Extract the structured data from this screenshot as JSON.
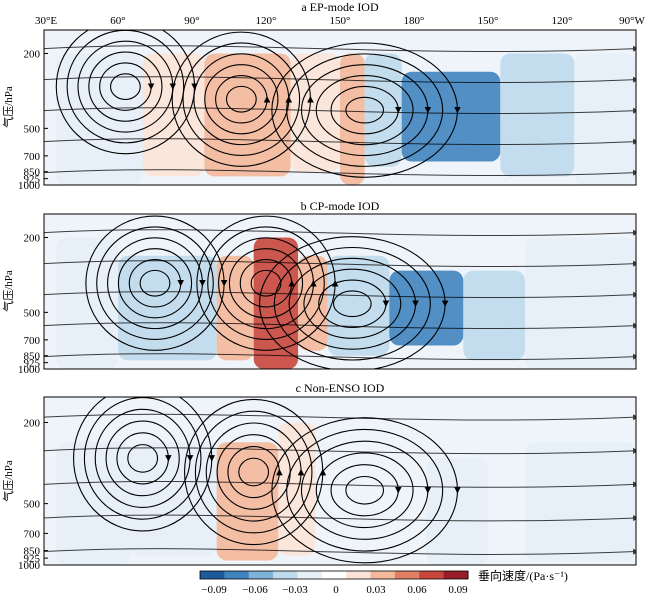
{
  "figure": {
    "x_ticks": [
      "30°E",
      "60°",
      "90°",
      "120°",
      "150°",
      "180°",
      "150°",
      "120°",
      "90°W"
    ],
    "y_label": "气压/hPa",
    "colorbar": {
      "label": "垂向速度/(Pa·s⁻¹)",
      "ticks": [
        "−0.09",
        "−0.06",
        "−0.03",
        "0",
        "0.03",
        "0.06",
        "0.09"
      ],
      "colors": [
        "#1f5b9b",
        "#3f84bf",
        "#7fb2d9",
        "#bfdaec",
        "#e6f0f7",
        "#ffffff",
        "#fbe4d7",
        "#f4b89a",
        "#e07f63",
        "#c8463b",
        "#981d2a"
      ]
    }
  },
  "chart_data": [
    {
      "type": "heatmap",
      "title": "a  EP-mode IOD",
      "xlabel": "",
      "ylabel": "气压/hPa",
      "x_range_deg_east": [
        30,
        270
      ],
      "y_levels_hPa": [
        200,
        500,
        700,
        850,
        925,
        1000
      ],
      "y_scale": "log",
      "value_range": [
        -0.09,
        0.09
      ],
      "overlay": "streamlines",
      "regions": [
        {
          "lon": [
            35,
            70
          ],
          "p": [
            200,
            1000
          ],
          "omega": -0.015
        },
        {
          "lon": [
            70,
            95
          ],
          "p": [
            200,
            900
          ],
          "omega": 0.02
        },
        {
          "lon": [
            95,
            130
          ],
          "p": [
            200,
            900
          ],
          "omega": 0.035
        },
        {
          "lon": [
            130,
            150
          ],
          "p": [
            200,
            850
          ],
          "omega": 0.02
        },
        {
          "lon": [
            150,
            160
          ],
          "p": [
            200,
            1000
          ],
          "omega": 0.03
        },
        {
          "lon": [
            160,
            175
          ],
          "p": [
            200,
            800
          ],
          "omega": -0.03
        },
        {
          "lon": [
            175,
            215
          ],
          "p": [
            250,
            750
          ],
          "omega": -0.06
        },
        {
          "lon": [
            215,
            245
          ],
          "p": [
            200,
            900
          ],
          "omega": -0.025
        },
        {
          "lon": [
            245,
            270
          ],
          "p": [
            200,
            1000
          ],
          "omega": -0.01
        }
      ],
      "circulation_cells": [
        {
          "lon": 63,
          "p": 300,
          "direction": "clockwise"
        },
        {
          "lon": 110,
          "p": 350,
          "direction": "counterclockwise"
        },
        {
          "lon": 160,
          "p": 400,
          "direction": "clockwise"
        }
      ]
    },
    {
      "type": "heatmap",
      "title": "b  CP-mode IOD",
      "xlabel": "",
      "ylabel": "气压/hPa",
      "x_range_deg_east": [
        30,
        270
      ],
      "y_levels_hPa": [
        200,
        500,
        700,
        850,
        925,
        1000
      ],
      "y_scale": "log",
      "value_range": [
        -0.09,
        0.09
      ],
      "overlay": "streamlines",
      "regions": [
        {
          "lon": [
            35,
            60
          ],
          "p": [
            200,
            1000
          ],
          "omega": -0.01
        },
        {
          "lon": [
            60,
            100
          ],
          "p": [
            250,
            900
          ],
          "omega": -0.025
        },
        {
          "lon": [
            100,
            115
          ],
          "p": [
            250,
            900
          ],
          "omega": 0.035
        },
        {
          "lon": [
            115,
            133
          ],
          "p": [
            200,
            1000
          ],
          "omega": 0.07
        },
        {
          "lon": [
            133,
            145
          ],
          "p": [
            250,
            800
          ],
          "omega": 0.03
        },
        {
          "lon": [
            145,
            170
          ],
          "p": [
            250,
            850
          ],
          "omega": -0.04
        },
        {
          "lon": [
            170,
            200
          ],
          "p": [
            300,
            750
          ],
          "omega": -0.065
        },
        {
          "lon": [
            200,
            225
          ],
          "p": [
            300,
            900
          ],
          "omega": -0.03
        },
        {
          "lon": [
            225,
            270
          ],
          "p": [
            200,
            1000
          ],
          "omega": -0.01
        }
      ],
      "circulation_cells": [
        {
          "lon": 75,
          "p": 350,
          "direction": "clockwise"
        },
        {
          "lon": 120,
          "p": 350,
          "direction": "counterclockwise"
        },
        {
          "lon": 155,
          "p": 450,
          "direction": "clockwise"
        }
      ]
    },
    {
      "type": "heatmap",
      "title": "c  Non-ENSO IOD",
      "xlabel": "",
      "ylabel": "气压/hPa",
      "x_range_deg_east": [
        30,
        270
      ],
      "y_levels_hPa": [
        200,
        500,
        700,
        850,
        925,
        1000
      ],
      "y_scale": "log",
      "value_range": [
        -0.09,
        0.09
      ],
      "overlay": "streamlines",
      "regions": [
        {
          "lon": [
            35,
            65
          ],
          "p": [
            250,
            1000
          ],
          "omega": -0.015
        },
        {
          "lon": [
            65,
            100
          ],
          "p": [
            250,
            900
          ],
          "omega": -0.02
        },
        {
          "lon": [
            100,
            125
          ],
          "p": [
            250,
            950
          ],
          "omega": 0.025
        },
        {
          "lon": [
            125,
            140
          ],
          "p": [
            200,
            900
          ],
          "omega": 0.015
        },
        {
          "lon": [
            185,
            210
          ],
          "p": [
            300,
            1000
          ],
          "omega": -0.015
        },
        {
          "lon": [
            225,
            270
          ],
          "p": [
            250,
            950
          ],
          "omega": -0.01
        }
      ],
      "circulation_cells": [
        {
          "lon": 70,
          "p": 300,
          "direction": "clockwise"
        },
        {
          "lon": 115,
          "p": 350,
          "direction": "counterclockwise"
        },
        {
          "lon": 160,
          "p": 430,
          "direction": "clockwise"
        }
      ]
    }
  ]
}
